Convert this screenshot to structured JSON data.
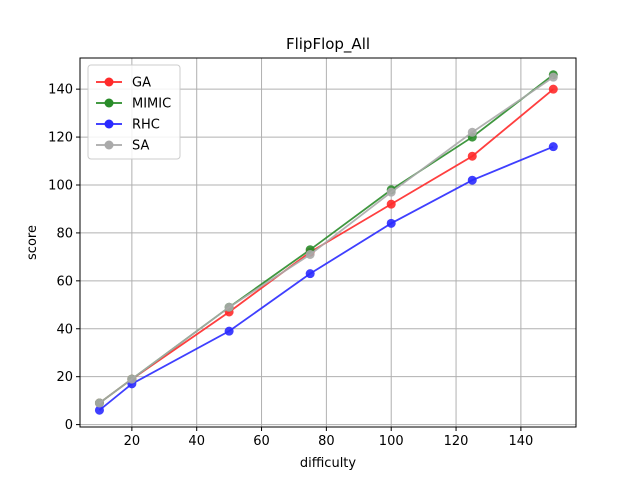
{
  "chart_data": {
    "type": "line",
    "title": "FlipFlop_All",
    "xlabel": "difficulty",
    "ylabel": "score",
    "x": [
      10,
      20,
      50,
      75,
      100,
      125,
      150
    ],
    "xlim": [
      4,
      157
    ],
    "ylim": [
      -1,
      153
    ],
    "xticks": [
      20,
      40,
      60,
      80,
      100,
      120,
      140
    ],
    "yticks": [
      0,
      20,
      40,
      60,
      80,
      100,
      120,
      140
    ],
    "grid": true,
    "legend_position": "top-left",
    "series": [
      {
        "name": "GA",
        "color": "#ff2a2a",
        "values": [
          9,
          19,
          47,
          72,
          92,
          112,
          140
        ]
      },
      {
        "name": "MIMIC",
        "color": "#2a8c2a",
        "values": [
          9,
          19,
          49,
          73,
          98,
          120,
          146
        ]
      },
      {
        "name": "RHC",
        "color": "#2a2aff",
        "values": [
          6,
          17,
          39,
          63,
          84,
          102,
          116
        ]
      },
      {
        "name": "SA",
        "color": "#aaaaaa",
        "values": [
          9,
          19,
          49,
          71,
          97,
          122,
          145
        ]
      }
    ]
  }
}
